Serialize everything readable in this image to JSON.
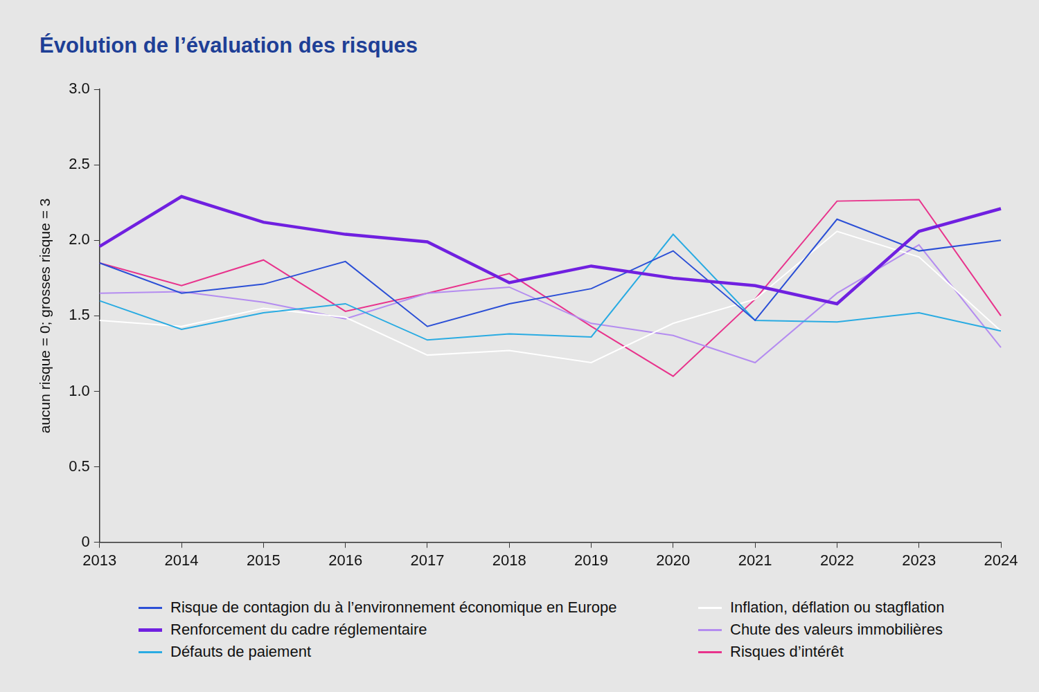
{
  "chart_data": {
    "type": "line",
    "title": "Évolution de l’évaluation des risques",
    "y_label": "aucun risque = 0; grosses risque = 3",
    "categories": [
      "2013",
      "2014",
      "2015",
      "2016",
      "2017",
      "2018",
      "2019",
      "2020",
      "2021",
      "2022",
      "2023",
      "2024"
    ],
    "series": [
      {
        "name": "Risque de contagion du à l’environnement économique en Europe",
        "color": "#2b4fd6",
        "line_style": "solid",
        "values": [
          1.85,
          1.65,
          1.71,
          1.86,
          1.43,
          1.58,
          1.68,
          1.93,
          1.47,
          2.14,
          1.93,
          2.0
        ]
      },
      {
        "name": "Renforcement du cadre réglementaire",
        "color": "#7020e0",
        "line_style": "thick",
        "values": [
          1.96,
          2.29,
          2.12,
          2.04,
          1.99,
          1.72,
          1.83,
          1.75,
          1.7,
          1.58,
          2.06,
          2.21
        ]
      },
      {
        "name": "Défauts de paiement",
        "color": "#29abe2",
        "line_style": "solid",
        "values": [
          1.6,
          1.41,
          1.52,
          1.58,
          1.34,
          1.38,
          1.36,
          2.04,
          1.47,
          1.46,
          1.52,
          1.4
        ]
      },
      {
        "name": "Inflation, déflation ou stagflation",
        "color": "#ffffff",
        "line_style": "solid",
        "values": [
          1.47,
          1.43,
          1.55,
          1.49,
          1.24,
          1.27,
          1.19,
          1.45,
          1.61,
          2.06,
          1.89,
          1.4
        ]
      },
      {
        "name": "Chute des valeurs immobilières",
        "color": "#b48cf0",
        "line_style": "solid",
        "values": [
          1.65,
          1.66,
          1.59,
          1.48,
          1.65,
          1.69,
          1.45,
          1.37,
          1.19,
          1.65,
          1.97,
          1.29
        ]
      },
      {
        "name": "Risques d’intérêt",
        "color": "#e8338c",
        "line_style": "solid",
        "values": [
          1.85,
          1.7,
          1.87,
          1.53,
          1.65,
          1.78,
          1.43,
          1.1,
          1.61,
          2.26,
          2.27,
          1.5
        ]
      }
    ],
    "ylim": [
      0,
      3
    ],
    "yticks": [
      0,
      0.5,
      {
        "value": 1,
        "label": "1.0"
      },
      1.5,
      {
        "value": 2,
        "label": "2.0"
      },
      2.5,
      {
        "value": 3,
        "label": "3.0"
      }
    ],
    "grid": false,
    "legend": "bottom"
  }
}
